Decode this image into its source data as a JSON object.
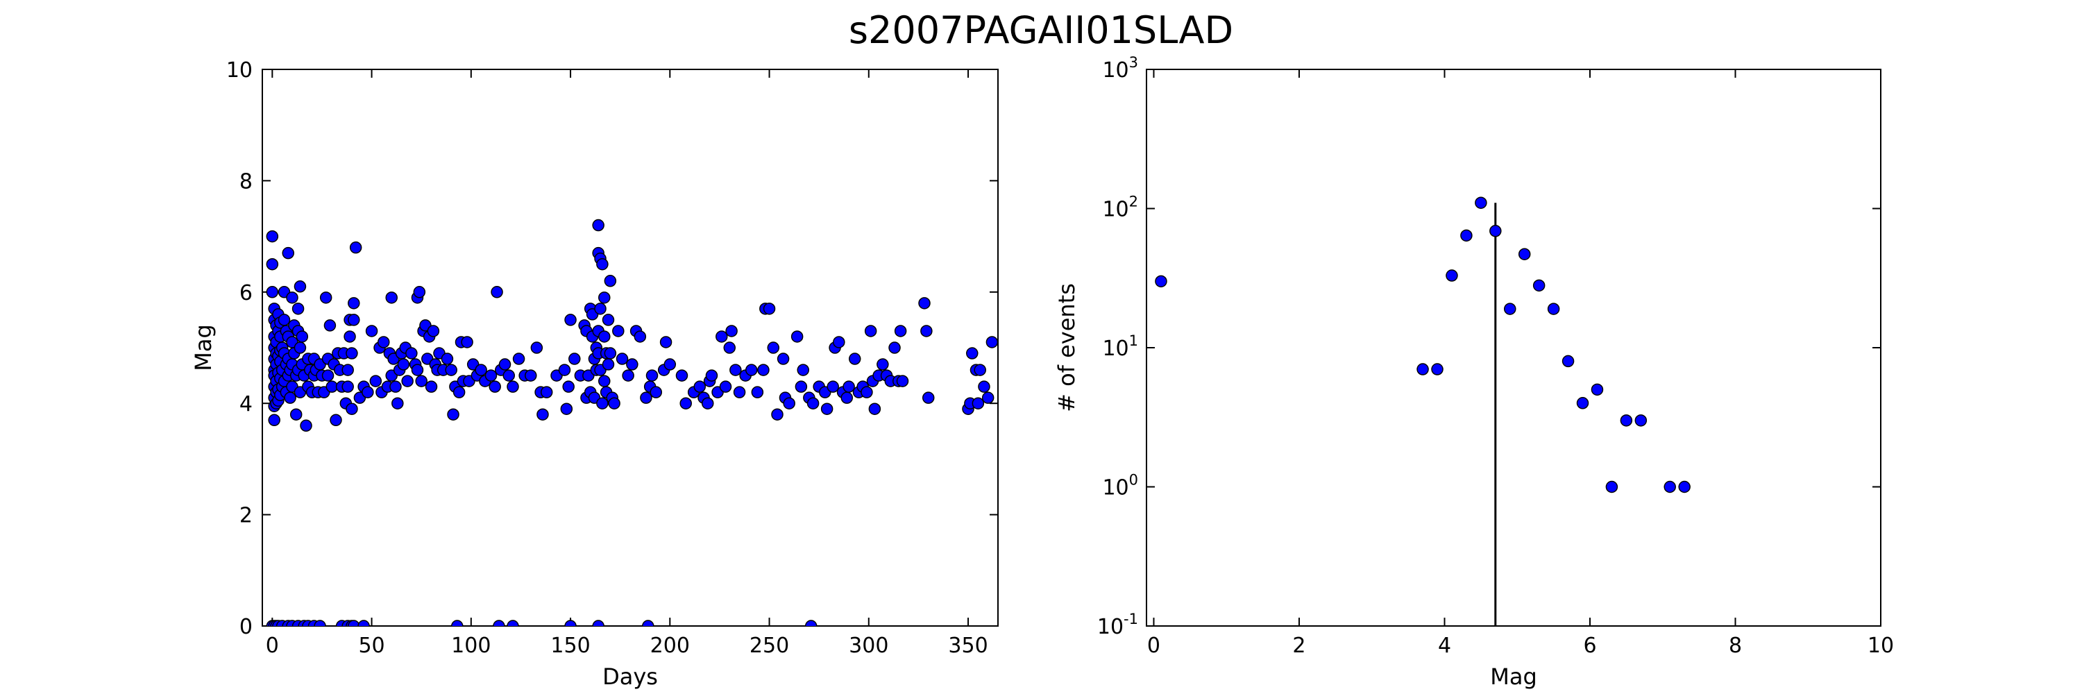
{
  "figure": {
    "title": "s2007PAGAII01SLAD"
  },
  "chart_data": [
    {
      "type": "scatter",
      "xlabel": "Days",
      "ylabel": "Mag",
      "xlim": [
        -5,
        365
      ],
      "ylim": [
        0,
        10
      ],
      "xticks": [
        0,
        50,
        100,
        150,
        200,
        250,
        300,
        350
      ],
      "yticks": [
        0,
        2,
        4,
        6,
        8,
        10
      ],
      "point_color": "#0000ff",
      "edge_color": "#000000",
      "points": [
        [
          0,
          7.0
        ],
        [
          0,
          6.5
        ],
        [
          0,
          6.0
        ],
        [
          1,
          5.7
        ],
        [
          1,
          5.5
        ],
        [
          1,
          5.2
        ],
        [
          1,
          5.0
        ],
        [
          1,
          4.8
        ],
        [
          1,
          4.6
        ],
        [
          1,
          4.5
        ],
        [
          1,
          4.3
        ],
        [
          1,
          4.1
        ],
        [
          1,
          3.95
        ],
        [
          1,
          3.7
        ],
        [
          2,
          5.4
        ],
        [
          2,
          5.1
        ],
        [
          2,
          4.9
        ],
        [
          2,
          4.7
        ],
        [
          2,
          4.4
        ],
        [
          2,
          4.2
        ],
        [
          2,
          4.0
        ],
        [
          3,
          5.6
        ],
        [
          3,
          5.3
        ],
        [
          3,
          4.85
        ],
        [
          3,
          4.55
        ],
        [
          3,
          4.25
        ],
        [
          3,
          4.05
        ],
        [
          4,
          5.45
        ],
        [
          4,
          5.2
        ],
        [
          4,
          4.95
        ],
        [
          4,
          4.75
        ],
        [
          4,
          4.45
        ],
        [
          4,
          4.15
        ],
        [
          5,
          5.0
        ],
        [
          5,
          4.6
        ],
        [
          5,
          4.3
        ],
        [
          6,
          6.0
        ],
        [
          6,
          5.5
        ],
        [
          6,
          4.9
        ],
        [
          6,
          4.4
        ],
        [
          7,
          5.3
        ],
        [
          7,
          4.7
        ],
        [
          7,
          4.2
        ],
        [
          8,
          6.7
        ],
        [
          8,
          5.2
        ],
        [
          8,
          4.8
        ],
        [
          8,
          4.5
        ],
        [
          9,
          4.6
        ],
        [
          9,
          4.1
        ],
        [
          10,
          5.9
        ],
        [
          10,
          5.1
        ],
        [
          10,
          4.7
        ],
        [
          10,
          4.3
        ],
        [
          11,
          5.4
        ],
        [
          11,
          4.9
        ],
        [
          12,
          4.5
        ],
        [
          12,
          3.8
        ],
        [
          13,
          5.7
        ],
        [
          13,
          5.3
        ],
        [
          13,
          4.6
        ],
        [
          14,
          6.1
        ],
        [
          14,
          5.0
        ],
        [
          14,
          4.2
        ],
        [
          15,
          5.2
        ],
        [
          15,
          4.7
        ],
        [
          16,
          4.5
        ],
        [
          17,
          3.6
        ],
        [
          18,
          4.8
        ],
        [
          18,
          4.3
        ],
        [
          19,
          4.6
        ],
        [
          20,
          4.2
        ],
        [
          21,
          4.8
        ],
        [
          21,
          4.5
        ],
        [
          22,
          4.6
        ],
        [
          23,
          4.2
        ],
        [
          24,
          4.7
        ],
        [
          25,
          4.5
        ],
        [
          26,
          4.2
        ],
        [
          27,
          5.9
        ],
        [
          28,
          4.8
        ],
        [
          28,
          4.5
        ],
        [
          29,
          5.4
        ],
        [
          30,
          4.3
        ],
        [
          31,
          4.7
        ],
        [
          32,
          3.7
        ],
        [
          33,
          4.9
        ],
        [
          34,
          4.6
        ],
        [
          35,
          4.3
        ],
        [
          36,
          4.9
        ],
        [
          37,
          4.0
        ],
        [
          38,
          4.6
        ],
        [
          38,
          4.3
        ],
        [
          39,
          5.5
        ],
        [
          39,
          5.2
        ],
        [
          40,
          4.9
        ],
        [
          40,
          3.9
        ],
        [
          41,
          5.8
        ],
        [
          41,
          5.5
        ],
        [
          42,
          6.8
        ],
        [
          44,
          4.1
        ],
        [
          46,
          4.3
        ],
        [
          48,
          4.2
        ],
        [
          50,
          5.3
        ],
        [
          52,
          4.4
        ],
        [
          54,
          5.0
        ],
        [
          55,
          4.2
        ],
        [
          56,
          5.1
        ],
        [
          58,
          4.3
        ],
        [
          59,
          4.9
        ],
        [
          60,
          5.9
        ],
        [
          60,
          4.5
        ],
        [
          61,
          4.8
        ],
        [
          62,
          4.3
        ],
        [
          63,
          4.0
        ],
        [
          64,
          4.6
        ],
        [
          65,
          4.9
        ],
        [
          66,
          4.7
        ],
        [
          67,
          5.0
        ],
        [
          68,
          4.4
        ],
        [
          70,
          4.9
        ],
        [
          72,
          4.7
        ],
        [
          73,
          5.9
        ],
        [
          73,
          4.6
        ],
        [
          74,
          6.0
        ],
        [
          75,
          4.4
        ],
        [
          76,
          5.3
        ],
        [
          77,
          5.4
        ],
        [
          78,
          4.8
        ],
        [
          79,
          5.2
        ],
        [
          80,
          4.3
        ],
        [
          81,
          5.3
        ],
        [
          82,
          4.7
        ],
        [
          83,
          4.6
        ],
        [
          84,
          4.9
        ],
        [
          86,
          4.6
        ],
        [
          88,
          4.8
        ],
        [
          90,
          4.6
        ],
        [
          91,
          3.8
        ],
        [
          92,
          4.3
        ],
        [
          94,
          4.2
        ],
        [
          95,
          5.1
        ],
        [
          96,
          4.4
        ],
        [
          98,
          5.1
        ],
        [
          99,
          4.4
        ],
        [
          101,
          4.7
        ],
        [
          103,
          4.5
        ],
        [
          105,
          4.6
        ],
        [
          107,
          4.4
        ],
        [
          110,
          4.5
        ],
        [
          112,
          4.3
        ],
        [
          113,
          6.0
        ],
        [
          115,
          4.6
        ],
        [
          117,
          4.7
        ],
        [
          119,
          4.5
        ],
        [
          121,
          4.3
        ],
        [
          124,
          4.8
        ],
        [
          127,
          4.5
        ],
        [
          130,
          4.5
        ],
        [
          133,
          5.0
        ],
        [
          135,
          4.2
        ],
        [
          136,
          3.8
        ],
        [
          138,
          4.2
        ],
        [
          143,
          4.5
        ],
        [
          147,
          4.6
        ],
        [
          148,
          3.9
        ],
        [
          149,
          4.3
        ],
        [
          150,
          5.5
        ],
        [
          152,
          4.8
        ],
        [
          155,
          4.5
        ],
        [
          157,
          5.4
        ],
        [
          158,
          5.3
        ],
        [
          158,
          4.1
        ],
        [
          159,
          4.5
        ],
        [
          160,
          5.7
        ],
        [
          160,
          4.2
        ],
        [
          161,
          5.6
        ],
        [
          161,
          5.2
        ],
        [
          162,
          4.8
        ],
        [
          162,
          4.1
        ],
        [
          163,
          5.0
        ],
        [
          163,
          4.6
        ],
        [
          164,
          7.2
        ],
        [
          164,
          6.7
        ],
        [
          164,
          5.3
        ],
        [
          164,
          4.9
        ],
        [
          165,
          6.6
        ],
        [
          165,
          5.7
        ],
        [
          165,
          4.6
        ],
        [
          166,
          6.5
        ],
        [
          166,
          4.0
        ],
        [
          167,
          5.9
        ],
        [
          167,
          5.2
        ],
        [
          167,
          4.4
        ],
        [
          168,
          4.9
        ],
        [
          168,
          4.2
        ],
        [
          169,
          5.5
        ],
        [
          169,
          4.7
        ],
        [
          170,
          6.2
        ],
        [
          170,
          4.9
        ],
        [
          171,
          4.1
        ],
        [
          172,
          4.0
        ],
        [
          174,
          5.3
        ],
        [
          176,
          4.8
        ],
        [
          179,
          4.5
        ],
        [
          181,
          4.7
        ],
        [
          183,
          5.3
        ],
        [
          185,
          5.2
        ],
        [
          188,
          4.1
        ],
        [
          190,
          4.3
        ],
        [
          191,
          4.5
        ],
        [
          193,
          4.2
        ],
        [
          197,
          4.6
        ],
        [
          198,
          5.1
        ],
        [
          200,
          4.7
        ],
        [
          206,
          4.5
        ],
        [
          208,
          4.0
        ],
        [
          212,
          4.2
        ],
        [
          215,
          4.3
        ],
        [
          217,
          4.1
        ],
        [
          219,
          4.0
        ],
        [
          220,
          4.4
        ],
        [
          221,
          4.5
        ],
        [
          224,
          4.2
        ],
        [
          226,
          5.2
        ],
        [
          228,
          4.3
        ],
        [
          230,
          5.0
        ],
        [
          231,
          5.3
        ],
        [
          233,
          4.6
        ],
        [
          235,
          4.2
        ],
        [
          238,
          4.5
        ],
        [
          241,
          4.6
        ],
        [
          244,
          4.2
        ],
        [
          247,
          4.6
        ],
        [
          248,
          5.7
        ],
        [
          250,
          5.7
        ],
        [
          252,
          5.0
        ],
        [
          254,
          3.8
        ],
        [
          257,
          4.8
        ],
        [
          258,
          4.1
        ],
        [
          260,
          4.0
        ],
        [
          264,
          5.2
        ],
        [
          266,
          4.3
        ],
        [
          267,
          4.6
        ],
        [
          270,
          4.1
        ],
        [
          272,
          4.0
        ],
        [
          275,
          4.3
        ],
        [
          278,
          4.2
        ],
        [
          279,
          3.9
        ],
        [
          282,
          4.3
        ],
        [
          283,
          5.0
        ],
        [
          285,
          5.1
        ],
        [
          287,
          4.2
        ],
        [
          289,
          4.1
        ],
        [
          290,
          4.3
        ],
        [
          293,
          4.8
        ],
        [
          295,
          4.2
        ],
        [
          297,
          4.3
        ],
        [
          299,
          4.2
        ],
        [
          301,
          5.3
        ],
        [
          302,
          4.4
        ],
        [
          303,
          3.9
        ],
        [
          305,
          4.5
        ],
        [
          307,
          4.7
        ],
        [
          309,
          4.5
        ],
        [
          311,
          4.4
        ],
        [
          313,
          5.0
        ],
        [
          315,
          4.4
        ],
        [
          316,
          5.3
        ],
        [
          317,
          4.4
        ],
        [
          328,
          5.8
        ],
        [
          329,
          5.3
        ],
        [
          330,
          4.1
        ],
        [
          350,
          3.9
        ],
        [
          351,
          4.0
        ],
        [
          352,
          4.9
        ],
        [
          354,
          4.6
        ],
        [
          355,
          4.0
        ],
        [
          356,
          4.6
        ],
        [
          358,
          4.3
        ],
        [
          360,
          4.1
        ],
        [
          362,
          5.1
        ],
        [
          0,
          0
        ],
        [
          1,
          0
        ],
        [
          2,
          0
        ],
        [
          3,
          0
        ],
        [
          5,
          0
        ],
        [
          8,
          0
        ],
        [
          10,
          0
        ],
        [
          13,
          0
        ],
        [
          16,
          0
        ],
        [
          18,
          0
        ],
        [
          21,
          0
        ],
        [
          24,
          0
        ],
        [
          35,
          0
        ],
        [
          38,
          0
        ],
        [
          40,
          0
        ],
        [
          41,
          0
        ],
        [
          46,
          0
        ],
        [
          93,
          0
        ],
        [
          114,
          0
        ],
        [
          121,
          0
        ],
        [
          150,
          0
        ],
        [
          164,
          0
        ],
        [
          189,
          0
        ],
        [
          271,
          0
        ]
      ]
    },
    {
      "type": "scatter",
      "xlabel": "Mag",
      "ylabel": "# of events",
      "yscale": "log",
      "xlim": [
        -0.1,
        10
      ],
      "ylim": [
        0.1,
        1000
      ],
      "xticks": [
        0,
        2,
        4,
        6,
        8,
        10
      ],
      "yticks": [
        {
          "value": 0.1,
          "base": "10",
          "exp": "-1"
        },
        {
          "value": 1,
          "base": "10",
          "exp": "0"
        },
        {
          "value": 10,
          "base": "10",
          "exp": "1"
        },
        {
          "value": 100,
          "base": "10",
          "exp": "2"
        },
        {
          "value": 1000,
          "base": "10",
          "exp": "3"
        }
      ],
      "point_color": "#0000ff",
      "edge_color": "#000000",
      "points": [
        [
          0.1,
          30
        ],
        [
          3.7,
          7
        ],
        [
          3.9,
          7
        ],
        [
          4.1,
          33
        ],
        [
          4.3,
          64
        ],
        [
          4.5,
          110
        ],
        [
          4.7,
          69
        ],
        [
          4.9,
          19
        ],
        [
          5.1,
          47
        ],
        [
          5.3,
          28
        ],
        [
          5.5,
          19
        ],
        [
          5.7,
          8
        ],
        [
          5.9,
          4
        ],
        [
          6.1,
          5
        ],
        [
          6.3,
          1
        ],
        [
          6.5,
          3
        ],
        [
          6.7,
          3
        ],
        [
          7.1,
          1
        ],
        [
          7.3,
          1
        ]
      ],
      "vline": {
        "x": 4.7,
        "y_top": 110
      }
    }
  ]
}
